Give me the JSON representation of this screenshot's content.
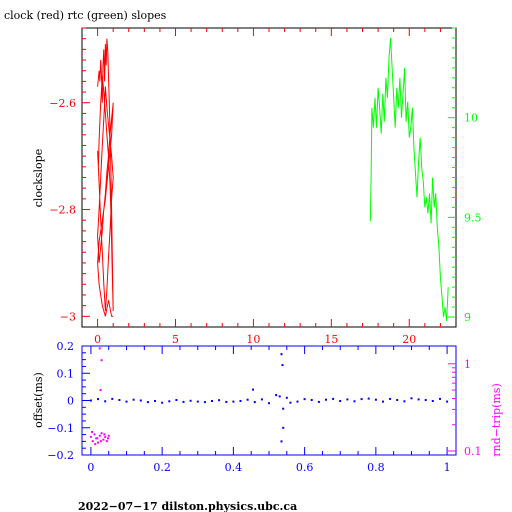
{
  "chart_data": [
    {
      "type": "line",
      "title": "clock (red) rtc (green) slopes",
      "ylabel": "clockslope",
      "xlim": [
        -1,
        23
      ],
      "ylim": [
        -3.02,
        -2.46
      ],
      "x_ticks": [
        0,
        5,
        10,
        15,
        20
      ],
      "x_tick_labels": [
        "0",
        "5",
        "10",
        "15",
        "20"
      ],
      "y_ticks": [
        -2.6,
        -2.8,
        -3
      ],
      "y_tick_labels": [
        "−2.6",
        "−2.8",
        "−3"
      ],
      "y2lim": [
        8.95,
        10.45
      ],
      "y2_ticks": [
        10,
        9.5,
        9
      ],
      "y2_tick_labels": [
        "10",
        "9.5",
        "9"
      ],
      "series": [
        {
          "axis": "left",
          "color": "#ff0000",
          "x": [
            0.0,
            0.1,
            0.15,
            0.2,
            0.25,
            0.3,
            0.35,
            0.4,
            0.45,
            0.5,
            0.55,
            0.6,
            0.65,
            0.7,
            0.75,
            0.8,
            0.85,
            0.9,
            0.95,
            1.0,
            0.95,
            0.9,
            0.85,
            0.8,
            0.7,
            0.6,
            0.5,
            0.4,
            0.3,
            0.2,
            0.1,
            0.05,
            0.0,
            0.1,
            0.2,
            0.3,
            0.4,
            0.5,
            0.6,
            0.7,
            0.8,
            0.9,
            1.0,
            0.9,
            0.8,
            0.7,
            0.6,
            0.5,
            0.4,
            0.3,
            0.2,
            0.1,
            0.0,
            0.1,
            0.2,
            0.3,
            0.4,
            0.5,
            0.6,
            0.7,
            0.8,
            0.9,
            1.0,
            0.9,
            0.7,
            0.5,
            0.3,
            0.1,
            0.0,
            0.1,
            0.3,
            0.5,
            0.7,
            0.9,
            1.0
          ],
          "y": [
            -2.57,
            -2.54,
            -2.56,
            -2.52,
            -2.55,
            -2.6,
            -2.53,
            -2.5,
            -2.56,
            -2.49,
            -2.53,
            -2.48,
            -2.5,
            -2.55,
            -2.6,
            -2.65,
            -2.72,
            -2.8,
            -2.9,
            -2.99,
            -2.93,
            -2.86,
            -2.8,
            -2.75,
            -2.7,
            -2.66,
            -2.62,
            -2.58,
            -2.55,
            -2.6,
            -2.67,
            -2.72,
            -2.69,
            -2.75,
            -2.82,
            -2.88,
            -2.94,
            -2.99,
            -2.95,
            -2.89,
            -2.84,
            -2.78,
            -2.74,
            -2.7,
            -2.67,
            -2.64,
            -2.61,
            -2.57,
            -2.63,
            -2.68,
            -2.74,
            -2.8,
            -2.85,
            -2.9,
            -2.87,
            -2.84,
            -2.8,
            -2.77,
            -2.73,
            -2.7,
            -2.66,
            -2.63,
            -2.6,
            -2.66,
            -2.72,
            -2.78,
            -2.82,
            -2.86,
            -2.9,
            -2.94,
            -2.98,
            -3.0,
            -2.97,
            -3.0,
            -3.0
          ]
        },
        {
          "axis": "right",
          "color": "#00ff00",
          "x": [
            17.5,
            17.55,
            17.6,
            17.7,
            17.8,
            17.9,
            18.0,
            18.1,
            18.2,
            18.3,
            18.4,
            18.5,
            18.6,
            18.7,
            18.8,
            18.9,
            19.0,
            19.1,
            19.2,
            19.3,
            19.4,
            19.5,
            19.6,
            19.7,
            19.8,
            19.9,
            20.0,
            20.1,
            20.2,
            20.3,
            20.4,
            20.5,
            20.6,
            20.7,
            20.8,
            20.9,
            21.0,
            21.1,
            21.2,
            21.3,
            21.4,
            21.5,
            21.6,
            21.7,
            21.8,
            21.9,
            22.0,
            22.1,
            22.2,
            22.3,
            22.4,
            22.5
          ],
          "y": [
            9.48,
            9.7,
            10.05,
            9.95,
            10.1,
            9.95,
            10.15,
            10.05,
            9.92,
            10.12,
            9.98,
            10.2,
            10.1,
            10.3,
            10.4,
            10.25,
            10.1,
            9.95,
            10.15,
            10.05,
            10.2,
            10.0,
            10.12,
            10.25,
            9.98,
            10.08,
            9.9,
            9.95,
            10.05,
            9.85,
            9.72,
            9.6,
            9.78,
            9.9,
            9.75,
            9.68,
            9.55,
            9.6,
            9.52,
            9.62,
            9.47,
            9.7,
            9.55,
            9.62,
            9.45,
            9.35,
            9.2,
            9.1,
            9.0,
            9.05,
            8.98,
            9.15
          ]
        }
      ]
    },
    {
      "type": "scatter",
      "ylabel": "offset(ms)",
      "y2label": "rnd−trip(ms)",
      "xlim": [
        -0.025,
        1.025
      ],
      "ylim": [
        -0.2,
        0.2
      ],
      "x_ticks": [
        0,
        0.2,
        0.4,
        0.6,
        0.8,
        1
      ],
      "x_tick_labels": [
        "0",
        "0.2",
        "0.4",
        "0.6",
        "0.8",
        "1"
      ],
      "y_ticks": [
        0.2,
        0.1,
        0,
        -0.1,
        -0.2
      ],
      "y_tick_labels": [
        "0.2",
        "0.1",
        "0",
        "−0.1",
        "−0.2"
      ],
      "y2_log": true,
      "y2lim": [
        0.09,
        1.6
      ],
      "y2_ticks": [
        1,
        0.1
      ],
      "y2_tick_labels": [
        "1",
        "0.1"
      ],
      "series": [
        {
          "axis": "left",
          "color": "#0000ff",
          "x": [
            0.0,
            0.02,
            0.04,
            0.06,
            0.08,
            0.1,
            0.12,
            0.14,
            0.16,
            0.18,
            0.2,
            0.22,
            0.24,
            0.26,
            0.28,
            0.3,
            0.32,
            0.34,
            0.36,
            0.38,
            0.4,
            0.42,
            0.44,
            0.46,
            0.48,
            0.5,
            0.52,
            0.53,
            0.54,
            0.55,
            0.56,
            0.58,
            0.6,
            0.62,
            0.64,
            0.66,
            0.68,
            0.7,
            0.72,
            0.74,
            0.76,
            0.78,
            0.8,
            0.82,
            0.84,
            0.86,
            0.88,
            0.9,
            0.92,
            0.94,
            0.96,
            0.98,
            1.0,
            0.455,
            0.535,
            0.538,
            0.535,
            0.54
          ],
          "y": [
            0.0,
            0.005,
            -0.003,
            0.006,
            0.002,
            -0.004,
            0.003,
            0.0,
            -0.006,
            -0.002,
            -0.008,
            -0.003,
            0.002,
            -0.005,
            -0.001,
            -0.004,
            -0.006,
            -0.002,
            0.001,
            -0.005,
            -0.004,
            -0.002,
            0.003,
            -0.006,
            0.004,
            -0.01,
            0.02,
            0.015,
            -0.03,
            0.01,
            -0.008,
            -0.004,
            0.005,
            0.002,
            -0.005,
            0.003,
            0.006,
            -0.002,
            0.004,
            -0.003,
            0.005,
            0.007,
            0.003,
            -0.004,
            0.006,
            0.002,
            -0.003,
            0.008,
            0.004,
            0.002,
            -0.002,
            0.006,
            -0.004,
            0.04,
            0.17,
            0.13,
            -0.15,
            -0.1
          ]
        },
        {
          "axis": "right",
          "color": "#ff00ff",
          "x": [
            0.0,
            0.005,
            0.01,
            0.015,
            0.02,
            0.025,
            0.03,
            0.035,
            0.04,
            0.045,
            0.05,
            0.003,
            0.012,
            0.018,
            0.028,
            0.038,
            0.048,
            0.025,
            0.027,
            0.03
          ],
          "y": [
            0.145,
            0.13,
            0.155,
            0.14,
            0.125,
            0.15,
            0.16,
            0.135,
            0.145,
            0.13,
            0.15,
            0.165,
            0.12,
            0.14,
            0.13,
            0.155,
            0.14,
            1.5,
            0.5,
            1.1
          ]
        }
      ]
    }
  ],
  "footer": {
    "text": "2022−07−17  dilston.physics.ubc.ca"
  }
}
